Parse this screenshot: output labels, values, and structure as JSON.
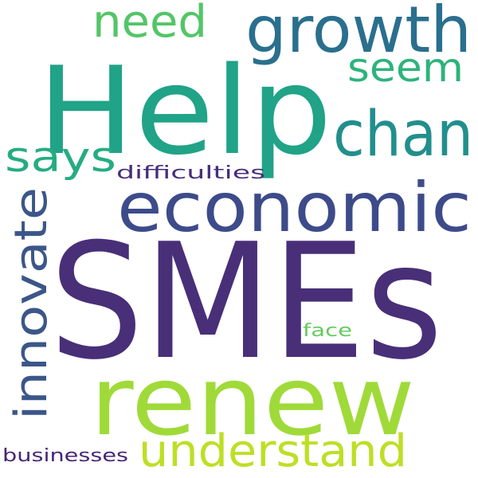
{
  "words": [
    {
      "id": "smes",
      "text": "SMEs",
      "color": "#482f78"
    },
    {
      "id": "help",
      "text": "Help",
      "color": "#20a387"
    },
    {
      "id": "renew",
      "text": "renew",
      "color": "#a0da39"
    },
    {
      "id": "economic",
      "text": "economic",
      "color": "#3d4b8a"
    },
    {
      "id": "growth",
      "text": "growth",
      "color": "#2a6f8e"
    },
    {
      "id": "chan",
      "text": "chan",
      "color": "#218f8d"
    },
    {
      "id": "understand",
      "text": "understand",
      "color": "#bddf26"
    },
    {
      "id": "innovate",
      "text": "innovate",
      "color": "#3b5689"
    },
    {
      "id": "need",
      "text": "need",
      "color": "#54c568"
    },
    {
      "id": "seem",
      "text": "seem",
      "color": "#2eb37c"
    },
    {
      "id": "says",
      "text": "says",
      "color": "#25ac82"
    },
    {
      "id": "difficulties",
      "text": "difficulties",
      "color": "#472d7b"
    },
    {
      "id": "face",
      "text": "face",
      "color": "#65cb5e"
    },
    {
      "id": "businesses",
      "text": "businesses",
      "color": "#482576"
    }
  ]
}
